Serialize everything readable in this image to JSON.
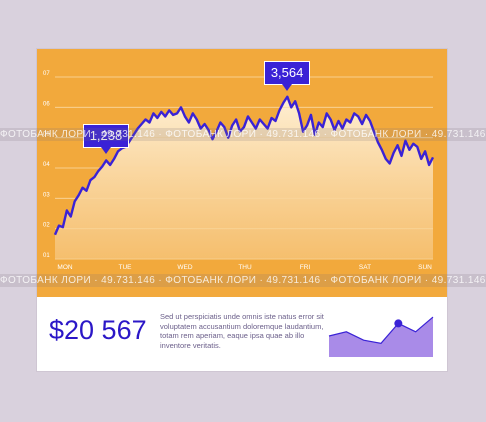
{
  "chart_data": {
    "type": "line",
    "x_labels": [
      "MON",
      "TUE",
      "WED",
      "THU",
      "FRI",
      "SAT",
      "SUN"
    ],
    "y_ticks": [
      "01",
      "02",
      "03",
      "04",
      "05",
      "06",
      "07"
    ],
    "ylim": [
      1,
      7
    ],
    "grid": true,
    "values": [
      1.8,
      2.1,
      2.05,
      2.6,
      2.4,
      2.9,
      3.1,
      3.35,
      3.25,
      3.6,
      3.7,
      3.9,
      4.05,
      4.25,
      4.1,
      4.3,
      4.55,
      4.65,
      4.7,
      4.9,
      5.1,
      5.3,
      5.45,
      5.6,
      5.5,
      5.8,
      5.65,
      5.85,
      5.7,
      5.9,
      5.75,
      5.8,
      6.0,
      5.7,
      5.5,
      5.8,
      5.6,
      5.3,
      5.45,
      5.25,
      4.95,
      5.2,
      5.5,
      5.35,
      5.0,
      5.4,
      5.6,
      5.2,
      5.35,
      5.7,
      5.5,
      5.3,
      5.6,
      5.45,
      5.3,
      5.65,
      5.55,
      5.9,
      6.15,
      6.35,
      6.0,
      6.2,
      5.8,
      5.2,
      5.4,
      5.75,
      5.1,
      5.5,
      5.35,
      5.8,
      5.6,
      5.25,
      5.55,
      5.3,
      5.6,
      5.5,
      5.8,
      5.7,
      5.45,
      5.75,
      5.55,
      5.2,
      4.85,
      4.6,
      4.3,
      4.15,
      4.5,
      4.75,
      4.4,
      4.9,
      4.6,
      4.8,
      4.7,
      4.3,
      4.55,
      4.1,
      4.35
    ],
    "callouts": [
      {
        "label": "1,238",
        "index": 13
      },
      {
        "label": "3,564",
        "index": 59
      }
    ],
    "colors": {
      "background": "#f2a93c",
      "line": "#3a22d6",
      "fill": "#fde7c3",
      "grid": "#f7c77e"
    }
  },
  "summary": {
    "amount": "$20 567",
    "description": "Sed ut perspiciatis unde omnis iste natus error sit voluptatem accusantium doloremque laudantium, totam rem aperiam, eaque ipsa quae ab illo inventore veritatis."
  },
  "mini_chart": {
    "values": [
      2,
      2.4,
      1.6,
      1.3,
      3.2,
      2.4,
      3.8
    ],
    "marker_index": 4,
    "colors": {
      "fill": "#a98be8",
      "line": "#3a22d6"
    }
  },
  "watermark": "ФОТОБАНК ЛОРИ · 49.731.146 · ФОТОБАНК ЛОРИ · 49.731.146 · ФОТОБАНК ЛОРИ · 49.731.146"
}
